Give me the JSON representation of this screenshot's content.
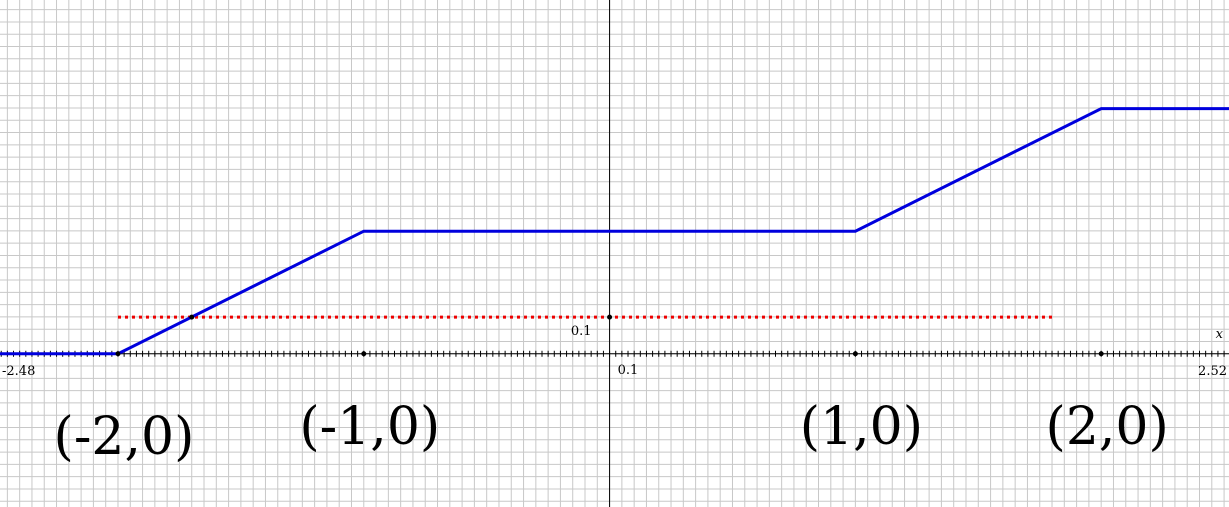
{
  "chart_data": {
    "type": "line",
    "xlabel": "x",
    "ylabel": "",
    "xlim": [
      -2.48,
      2.52
    ],
    "ylim": [
      -0.0625,
      0.1443
    ],
    "grid": true,
    "axis_labels": {
      "x_min": "-2.48",
      "x_max": "2.52",
      "x_unit": "0.1",
      "y_unit": "0.1"
    },
    "series": [
      {
        "color": "#0000dd",
        "x": [
          -2.48,
          -2.0,
          -1.0,
          1.0,
          2.0,
          2.52
        ],
        "y": [
          0.0,
          0.0,
          0.05,
          0.05,
          0.1,
          0.1
        ]
      }
    ],
    "reference_line": {
      "color": "#ee0000",
      "style": "dotted",
      "y": 0.01493,
      "x": [
        -2.0,
        1.8
      ]
    },
    "marked_points": [
      {
        "x": -2,
        "y": 0
      },
      {
        "x": -1,
        "y": 0
      },
      {
        "x": 0,
        "y": 0.01493
      },
      {
        "x": 1,
        "y": 0
      },
      {
        "x": 2,
        "y": 0
      },
      {
        "x": -1.7,
        "y": 0.01493
      }
    ],
    "point_labels": [
      {
        "text": "(-2,0)",
        "x": -2
      },
      {
        "text": "(-1,0)",
        "x": -1
      },
      {
        "text": "(1,0)",
        "x": 1
      },
      {
        "text": "(2,0)",
        "x": 2
      }
    ]
  }
}
